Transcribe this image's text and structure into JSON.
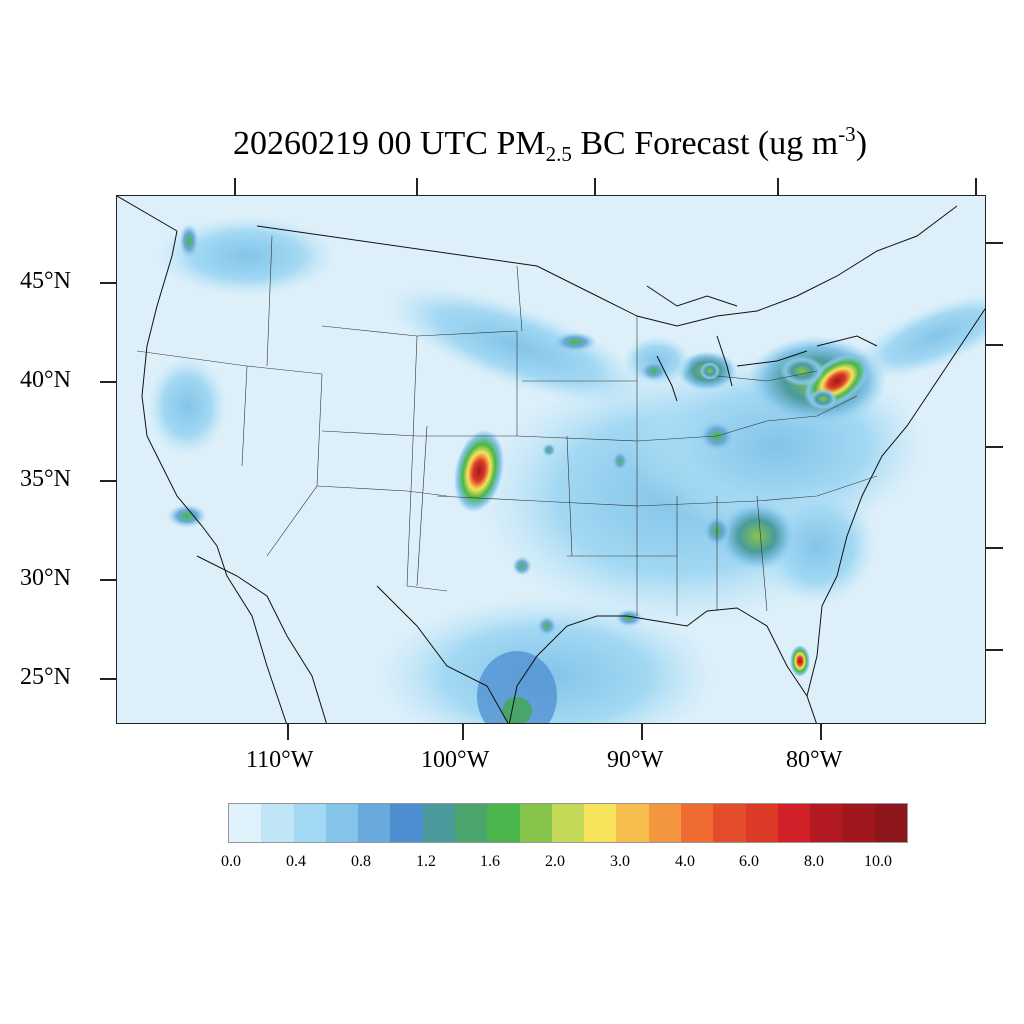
{
  "title": {
    "main": "20260219 00 UTC PM",
    "sub": "2.5",
    "after": " BC Forecast (ug m",
    "sup": "-3",
    "close": ")"
  },
  "lat_labels": [
    "45°N",
    "40°N",
    "35°N",
    "30°N",
    "25°N"
  ],
  "lon_labels": [
    "110°W",
    "100°W",
    "90°W",
    "80°W"
  ],
  "colorbar": {
    "labels": [
      "0.0",
      "0.4",
      "0.8",
      "1.2",
      "1.6",
      "2.0",
      "3.0",
      "4.0",
      "6.0",
      "8.0",
      "10.0"
    ],
    "colors": [
      "#dff1fa",
      "#bfe5f7",
      "#a2d8f3",
      "#84c4e8",
      "#69a9dc",
      "#4d8ed0",
      "#4a9a9c",
      "#4aa56c",
      "#4ab54a",
      "#86c44c",
      "#c4d957",
      "#f7e35a",
      "#f6bd4c",
      "#f4963f",
      "#ef6b32",
      "#e44d2b",
      "#dc3a27",
      "#d22028",
      "#b41a22",
      "#a0181e",
      "#8c161a"
    ]
  },
  "map": {
    "background_color": "#ddf0fa",
    "hotspot_colors": {
      "low": "#a2d8f3",
      "mid": "#4ab54a",
      "high": "#f7e35a",
      "peak": "#d22028"
    }
  }
}
